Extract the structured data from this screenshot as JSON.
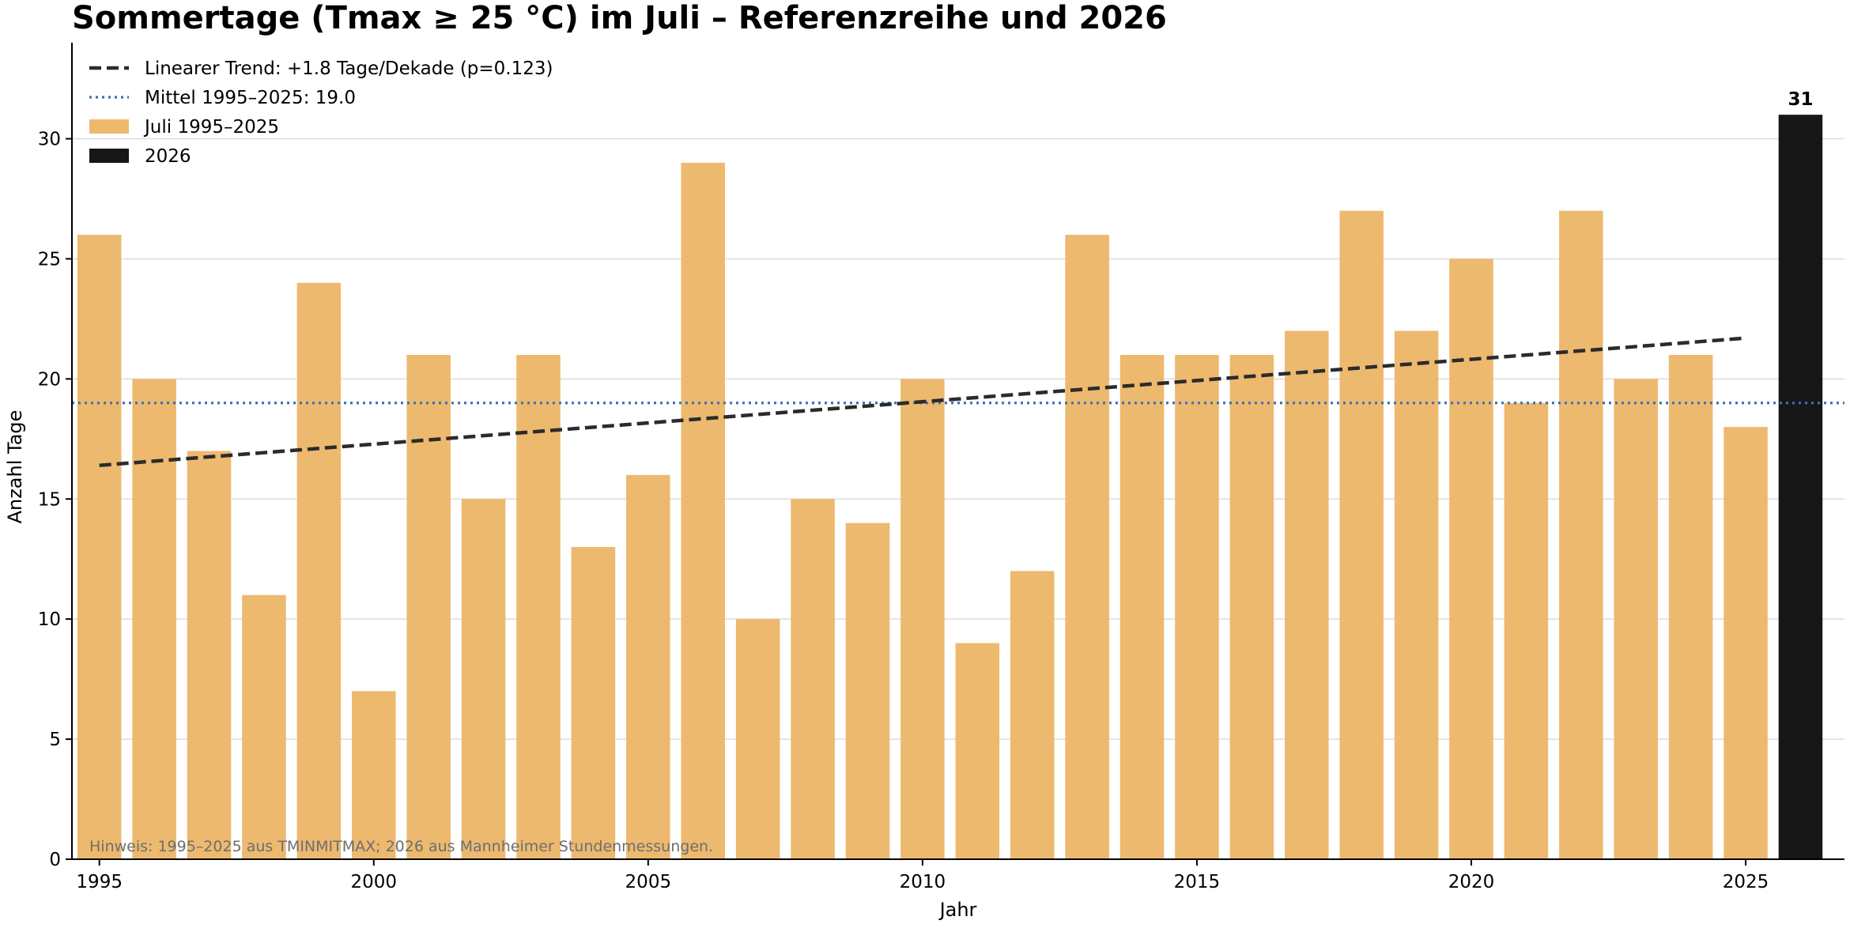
{
  "chart_data": {
    "type": "bar",
    "title": "Sommertage (Tmax ≥ 25 °C) im Juli – Referenzreihe und 2026",
    "xlabel": "Jahr",
    "ylabel": "Anzahl Tage",
    "xlim": [
      1994.5,
      2026.8
    ],
    "ylim": [
      0,
      34
    ],
    "xticks": [
      1995,
      2000,
      2005,
      2010,
      2015,
      2020,
      2025
    ],
    "yticks": [
      0,
      5,
      10,
      15,
      20,
      25,
      30
    ],
    "grid": "y",
    "legend_position": "top-left",
    "legend": [
      {
        "label": "Linearer Trend: +1.8 Tage/Dekade (p=0.123)",
        "kind": "dashed-line",
        "color": "#2b2b2b"
      },
      {
        "label": "Mittel 1995–2025: 19.0",
        "kind": "dotted-line",
        "color": "#3d6fb6"
      },
      {
        "label": "Juli 1995–2025",
        "kind": "patch",
        "color": "#edb96f"
      },
      {
        "label": "2026",
        "kind": "patch",
        "color": "#171717"
      }
    ],
    "series": [
      {
        "name": "Juli 1995–2025",
        "color": "#edb96f",
        "x": [
          1995,
          1996,
          1997,
          1998,
          1999,
          2000,
          2001,
          2002,
          2003,
          2004,
          2005,
          2006,
          2007,
          2008,
          2009,
          2010,
          2011,
          2012,
          2013,
          2014,
          2015,
          2016,
          2017,
          2018,
          2019,
          2020,
          2021,
          2022,
          2023,
          2024,
          2025
        ],
        "values": [
          26,
          20,
          17,
          11,
          24,
          7,
          21,
          15,
          21,
          13,
          16,
          29,
          10,
          15,
          14,
          20,
          9,
          12,
          26,
          21,
          21,
          21,
          22,
          27,
          22,
          25,
          19,
          27,
          20,
          21,
          18
        ]
      },
      {
        "name": "2026",
        "color": "#171717",
        "x": [
          2026
        ],
        "values": [
          31
        ]
      }
    ],
    "trend": {
      "x": [
        1995,
        2025
      ],
      "y": [
        16.4,
        21.7
      ]
    },
    "mean": 19.0,
    "annotations": [
      {
        "text": "31",
        "x": 2026,
        "y": 31
      },
      {
        "text": "Hinweis: 1995–2025 aus TMINMITMAX; 2026 aus Mannheimer Stundenmessungen.",
        "position": "bottom-left"
      }
    ]
  }
}
